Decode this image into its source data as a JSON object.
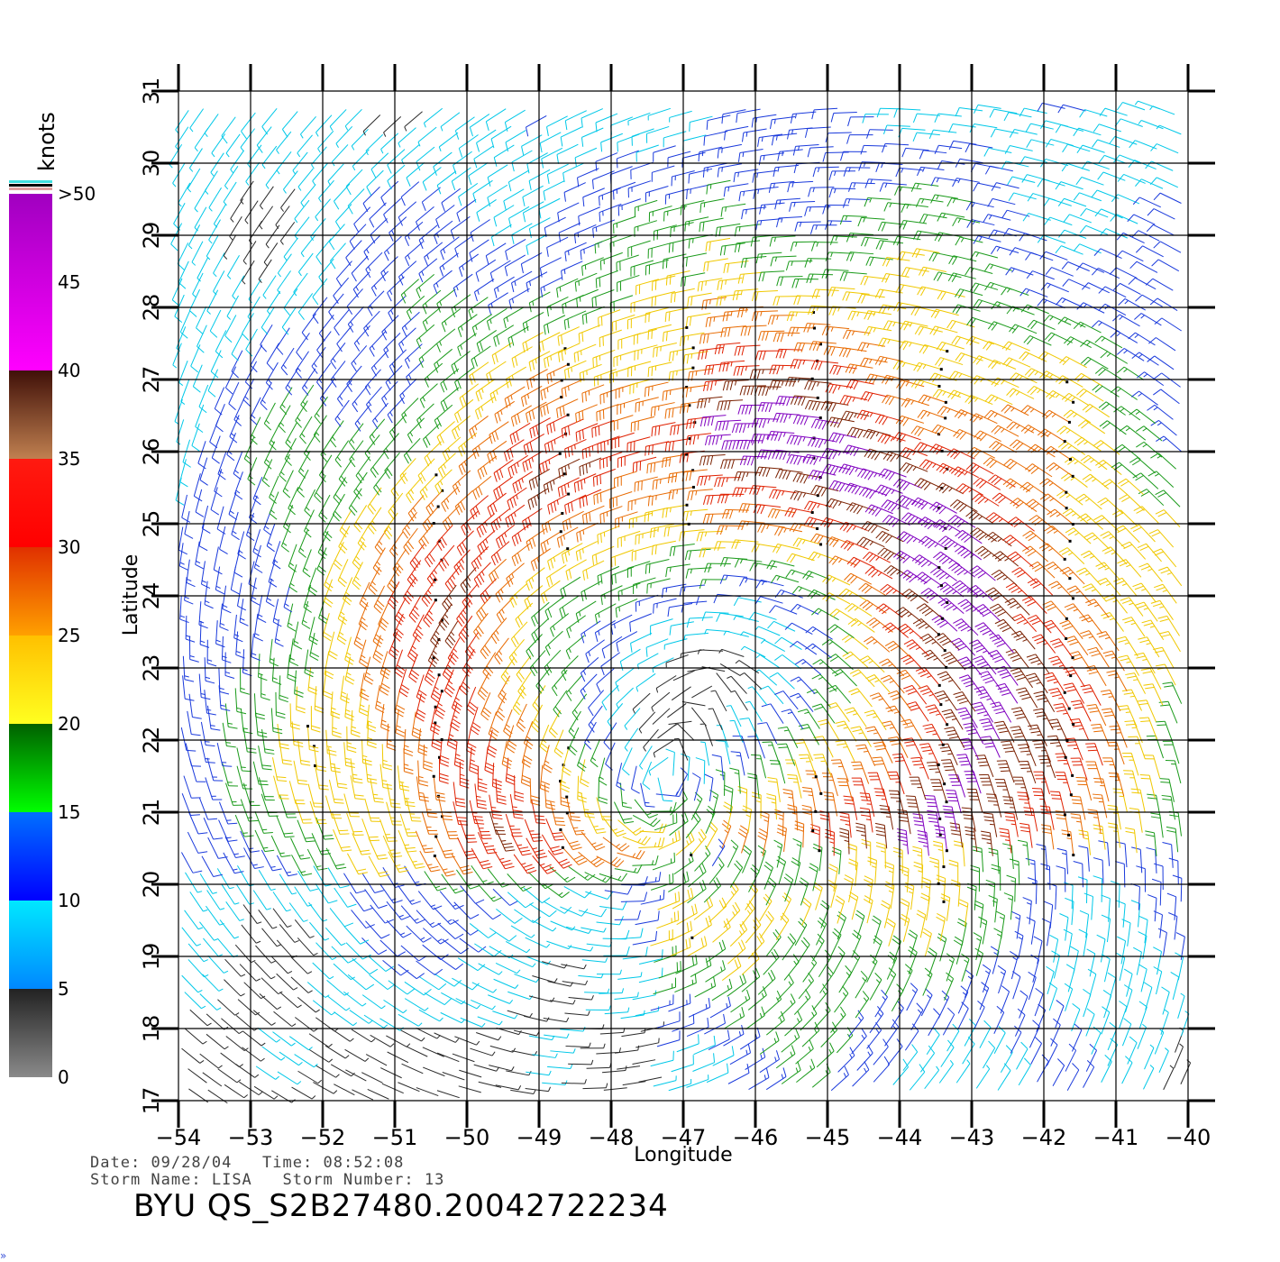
{
  "chart_data": {
    "type": "wind_barb_map",
    "xlabel": "Longitude",
    "ylabel": "Latitude",
    "xlim": [
      -54,
      -40
    ],
    "ylim": [
      17,
      31
    ],
    "x_ticks": [
      -54,
      -53,
      -52,
      -51,
      -50,
      -49,
      -48,
      -47,
      -46,
      -45,
      -44,
      -43,
      -42,
      -41,
      -40
    ],
    "y_ticks": [
      17,
      18,
      19,
      20,
      21,
      22,
      23,
      24,
      25,
      26,
      27,
      28,
      29,
      30,
      31
    ],
    "x_tick_labels": [
      "−54",
      "−53",
      "−52",
      "−51",
      "−50",
      "−49",
      "−48",
      "−47",
      "−46",
      "−45",
      "−44",
      "−43",
      "−42",
      "−41",
      "−40"
    ],
    "grid": true,
    "storm_center": {
      "lon": -46.5,
      "lat": 22.8
    },
    "colorbar": {
      "unit_label": "knots",
      "labels": [
        "0",
        "5",
        "10",
        "15",
        "20",
        "25",
        "30",
        "35",
        "40",
        "45",
        ">50"
      ],
      "bins": [
        {
          "from": 0,
          "to": 5,
          "top": "#222222",
          "bottom": "#8a8a8a"
        },
        {
          "from": 5,
          "to": 10,
          "top": "#00e8ff",
          "bottom": "#0088ff"
        },
        {
          "from": 10,
          "to": 15,
          "top": "#0070ff",
          "bottom": "#0000ff"
        },
        {
          "from": 15,
          "to": 20,
          "top": "#006000",
          "bottom": "#00ff00"
        },
        {
          "from": 20,
          "to": 25,
          "top": "#ffc000",
          "bottom": "#ffff20"
        },
        {
          "from": 25,
          "to": 30,
          "top": "#e03000",
          "bottom": "#ffa000"
        },
        {
          "from": 30,
          "to": 35,
          "top": "#ff1a10",
          "bottom": "#ff0000"
        },
        {
          "from": 35,
          "to": 40,
          "top": "#401008",
          "bottom": "#c08050"
        },
        {
          "from": 40,
          "to": 50,
          "top": "#a000c0",
          "bottom": "#ff00ff"
        },
        {
          "from": 50,
          "to": 60,
          "top": "#6010c0",
          "bottom": "#8000c8"
        }
      ],
      "overflow_stripes": [
        "#40e0e0",
        "#000000",
        "#e0a0a0"
      ]
    },
    "speed_colors": [
      {
        "max": 5,
        "color": "#2a2a2a"
      },
      {
        "max": 10,
        "color": "#00c8e8"
      },
      {
        "max": 15,
        "color": "#1a3adc"
      },
      {
        "max": 20,
        "color": "#1a9a1a"
      },
      {
        "max": 25,
        "color": "#f0c800"
      },
      {
        "max": 30,
        "color": "#e86a00"
      },
      {
        "max": 35,
        "color": "#e02000"
      },
      {
        "max": 40,
        "color": "#7a2000"
      },
      {
        "max": 999,
        "color": "#8000c0"
      }
    ]
  },
  "info": {
    "date_label": "Date:",
    "date": "09/28/04",
    "time_label": "Time:",
    "time": "08:52:08",
    "storm_name_label": "Storm Name:",
    "storm_name": "LISA",
    "storm_number_label": "Storm Number:",
    "storm_number": "13",
    "file_id": "BYU  QS_S2B27480.20042722234"
  }
}
